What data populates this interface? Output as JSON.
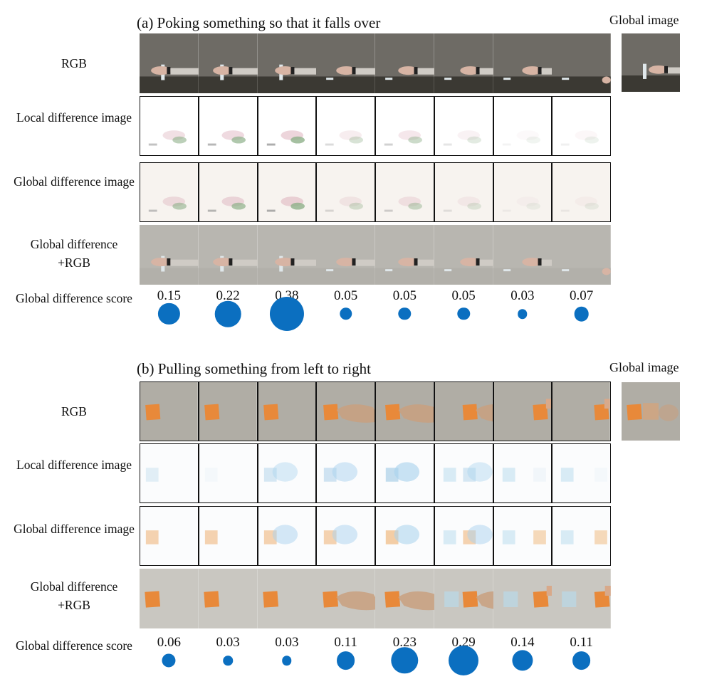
{
  "panels": [
    {
      "id": "a",
      "title": "(a) Poking something so that it falls over",
      "global_image_label": "Global image",
      "scene": "poke",
      "rows": [
        {
          "label": "RGB",
          "kind": "rgb"
        },
        {
          "label": "Local difference image",
          "kind": "local"
        },
        {
          "label": "Global difference image",
          "kind": "global"
        },
        {
          "label": "Global difference +RGB",
          "kind": "blend"
        }
      ],
      "score_label": "Global difference score",
      "scores": [
        "0.15",
        "0.22",
        "0.38",
        "0.05",
        "0.05",
        "0.05",
        "0.03",
        "0.07"
      ],
      "score_values": [
        0.15,
        0.22,
        0.38,
        0.05,
        0.05,
        0.05,
        0.03,
        0.07
      ]
    },
    {
      "id": "b",
      "title": "(b) Pulling something from left to right",
      "global_image_label": "Global image",
      "scene": "pull",
      "rows": [
        {
          "label": "RGB",
          "kind": "rgb"
        },
        {
          "label": "Local difference image",
          "kind": "local"
        },
        {
          "label": "Global difference image",
          "kind": "global"
        },
        {
          "label": "Global difference +RGB",
          "kind": "blend"
        }
      ],
      "score_label": "Global difference score",
      "scores": [
        "0.06",
        "0.03",
        "0.03",
        "0.11",
        "0.23",
        "0.29",
        "0.14",
        "0.11"
      ],
      "score_values": [
        0.06,
        0.03,
        0.03,
        0.11,
        0.23,
        0.29,
        0.14,
        0.11
      ]
    }
  ],
  "colors": {
    "score_dot": "#0b6fc0",
    "poke_wall": "#6f6c66",
    "poke_table": "#3c3a34",
    "pull_floor": "#b3b0a8",
    "pull_box": "#e98a34"
  }
}
